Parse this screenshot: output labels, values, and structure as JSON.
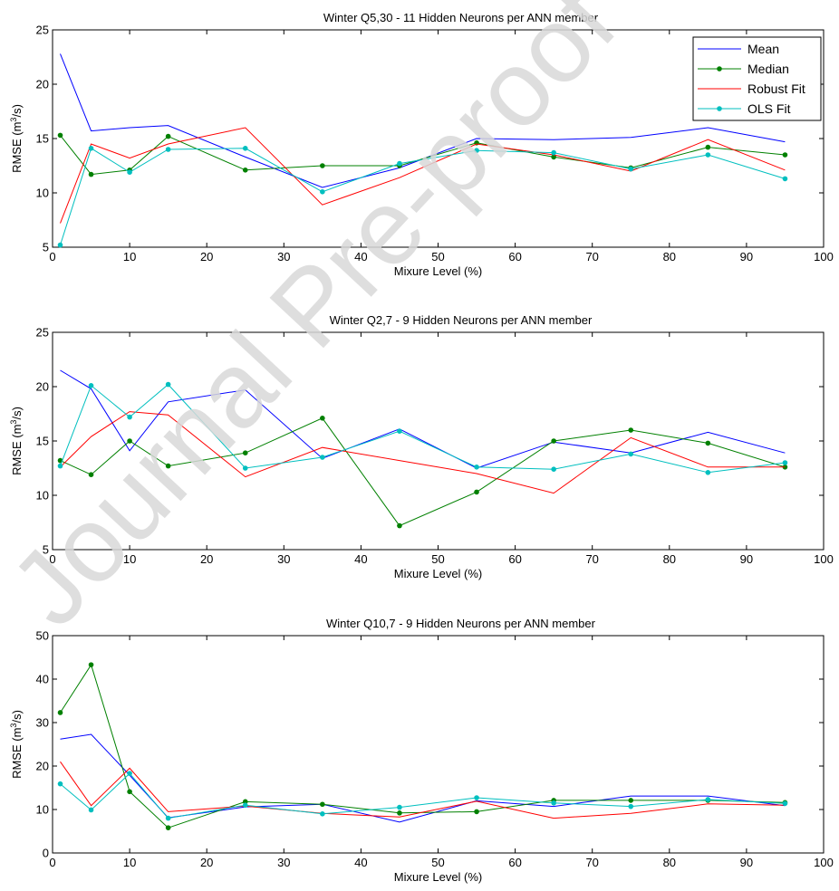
{
  "chart_data": [
    {
      "type": "line",
      "title": "Winter Q5,30 - 11 Hidden Neurons per ANN member",
      "xlabel": "Mixure Level (%)",
      "ylabel": "RMSE (m³/s)",
      "ylabel_base": "RMSE (m",
      "ylabel_sup": "3",
      "ylabel_tail": "/s)",
      "xlim": [
        0,
        100
      ],
      "ylim": [
        5,
        25
      ],
      "xticks": [
        0,
        10,
        20,
        30,
        40,
        50,
        60,
        70,
        80,
        90,
        100
      ],
      "yticks": [
        5,
        10,
        15,
        20,
        25
      ],
      "grid": false,
      "legend_position": "top-right",
      "x": [
        1,
        5,
        10,
        15,
        25,
        35,
        45,
        55,
        65,
        75,
        85,
        95
      ],
      "series": [
        {
          "name": "Mean",
          "color": "#0000ff",
          "marker": false,
          "values": [
            22.8,
            15.7,
            16.0,
            16.2,
            13.3,
            10.5,
            12.3,
            15.0,
            14.9,
            15.1,
            16.0,
            14.7
          ]
        },
        {
          "name": "Median",
          "color": "#008000",
          "marker": true,
          "values": [
            15.3,
            11.7,
            12.1,
            15.2,
            12.1,
            12.5,
            12.5,
            14.6,
            13.3,
            12.3,
            14.2,
            13.5
          ]
        },
        {
          "name": "Robust Fit",
          "color": "#ff0000",
          "marker": false,
          "values": [
            7.2,
            14.5,
            13.2,
            14.5,
            16.0,
            8.9,
            11.4,
            14.5,
            13.5,
            12.0,
            14.9,
            12.1
          ]
        },
        {
          "name": "OLS Fit",
          "color": "#00bfbf",
          "marker": true,
          "values": [
            5.2,
            14.1,
            11.9,
            14.0,
            14.1,
            10.1,
            12.7,
            13.9,
            13.7,
            12.2,
            13.5,
            11.3
          ]
        }
      ]
    },
    {
      "type": "line",
      "title": "Winter Q2,7 - 9 Hidden Neurons per ANN member",
      "xlabel": "Mixure Level (%)",
      "ylabel": "RMSE (m³/s)",
      "ylabel_base": "RMSE (m",
      "ylabel_sup": "3",
      "ylabel_tail": "/s)",
      "xlim": [
        0,
        100
      ],
      "ylim": [
        5,
        25
      ],
      "xticks": [
        0,
        10,
        20,
        30,
        40,
        50,
        60,
        70,
        80,
        90,
        100
      ],
      "yticks": [
        5,
        10,
        15,
        20,
        25
      ],
      "grid": false,
      "x": [
        1,
        5,
        10,
        15,
        25,
        35,
        45,
        55,
        65,
        75,
        85,
        95
      ],
      "series": [
        {
          "color": "#0000ff",
          "marker": false,
          "values": [
            21.5,
            19.8,
            14.1,
            18.6,
            19.7,
            13.4,
            16.1,
            12.5,
            14.9,
            13.9,
            15.8,
            13.9
          ]
        },
        {
          "color": "#008000",
          "marker": true,
          "values": [
            13.2,
            11.9,
            15.0,
            12.7,
            13.9,
            17.1,
            7.2,
            10.3,
            15.0,
            16.0,
            14.8,
            12.6
          ]
        },
        {
          "color": "#ff0000",
          "marker": false,
          "values": [
            12.6,
            15.4,
            17.7,
            17.4,
            11.7,
            14.4,
            13.2,
            12.0,
            10.2,
            15.3,
            12.6,
            12.6
          ]
        },
        {
          "color": "#00bfbf",
          "marker": true,
          "values": [
            12.7,
            20.1,
            17.2,
            20.2,
            12.5,
            13.5,
            15.9,
            12.6,
            12.4,
            13.8,
            12.1,
            13.0
          ]
        }
      ]
    },
    {
      "type": "line",
      "title": "Winter Q10,7 - 9 Hidden Neurons per ANN member",
      "xlabel": "Mixure Level (%)",
      "ylabel": "RMSE (m³/s)",
      "ylabel_base": "RMSE (m",
      "ylabel_sup": "3",
      "ylabel_tail": "/s)",
      "xlim": [
        0,
        100
      ],
      "ylim": [
        0,
        50
      ],
      "xticks": [
        0,
        10,
        20,
        30,
        40,
        50,
        60,
        70,
        80,
        90,
        100
      ],
      "yticks": [
        0,
        10,
        20,
        30,
        40,
        50
      ],
      "grid": false,
      "x": [
        1,
        5,
        10,
        15,
        25,
        35,
        45,
        55,
        65,
        75,
        85,
        95
      ],
      "series": [
        {
          "color": "#0000ff",
          "marker": false,
          "values": [
            26.2,
            27.3,
            17.9,
            8.1,
            10.6,
            11.2,
            7.1,
            12.0,
            10.7,
            13.1,
            13.1,
            10.9
          ]
        },
        {
          "color": "#008000",
          "marker": true,
          "values": [
            32.3,
            43.3,
            14.1,
            5.8,
            11.8,
            11.2,
            9.2,
            9.5,
            12.1,
            12.1,
            12.1,
            11.6
          ]
        },
        {
          "color": "#ff0000",
          "marker": false,
          "values": [
            21.0,
            10.9,
            19.5,
            9.5,
            10.8,
            9.1,
            8.3,
            11.9,
            8.0,
            9.1,
            11.3,
            11.0
          ]
        },
        {
          "color": "#00bfbf",
          "marker": true,
          "values": [
            15.9,
            9.9,
            18.3,
            8.0,
            11.0,
            9.0,
            10.5,
            12.7,
            11.5,
            10.7,
            12.3,
            11.4
          ]
        }
      ]
    }
  ],
  "watermark": {
    "text": "Journal Pre-proof",
    "color": "#d8d8d8"
  }
}
